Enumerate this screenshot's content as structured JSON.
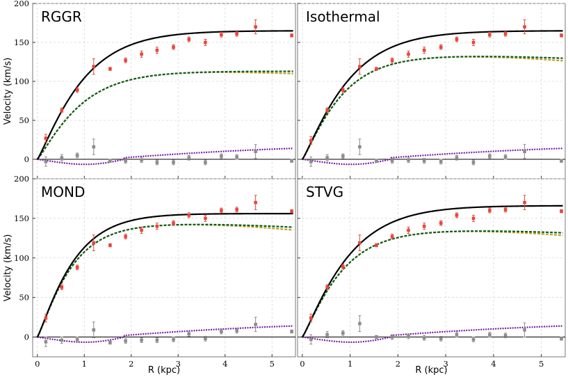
{
  "chart_data": [
    {
      "type": "line",
      "title": "RGGR",
      "xlabel": "",
      "ylabel": "Velocity (km/s)",
      "xlim": [
        -0.1,
        5.5
      ],
      "ylim": [
        -25,
        200
      ],
      "grid": true,
      "x_ticks": [
        "0",
        "1",
        "2",
        "3",
        "4",
        "5"
      ],
      "y_ticks": [
        "0",
        "50",
        "100",
        "150",
        "200"
      ],
      "observed": [
        {
          "x": 0.18,
          "y": 27,
          "err": 5
        },
        {
          "x": 0.52,
          "y": 63,
          "err": 3
        },
        {
          "x": 0.85,
          "y": 89,
          "err": 3
        },
        {
          "x": 1.2,
          "y": 119,
          "err": 10
        },
        {
          "x": 1.55,
          "y": 116,
          "err": 2
        },
        {
          "x": 1.88,
          "y": 127,
          "err": 3
        },
        {
          "x": 2.22,
          "y": 135,
          "err": 4
        },
        {
          "x": 2.55,
          "y": 140,
          "err": 4
        },
        {
          "x": 2.9,
          "y": 144,
          "err": 3
        },
        {
          "x": 3.23,
          "y": 154,
          "err": 3
        },
        {
          "x": 3.58,
          "y": 150,
          "err": 4
        },
        {
          "x": 3.92,
          "y": 160,
          "err": 3
        },
        {
          "x": 4.25,
          "y": 161,
          "err": 3
        },
        {
          "x": 4.65,
          "y": 170,
          "err": 9
        },
        {
          "x": 5.42,
          "y": 159,
          "err": 2
        }
      ],
      "residuals": [
        {
          "x": 0.18,
          "y": -3,
          "err": 6
        },
        {
          "x": 0.52,
          "y": 2,
          "err": 4
        },
        {
          "x": 0.85,
          "y": 5,
          "err": 3
        },
        {
          "x": 1.2,
          "y": 16,
          "err": 10
        },
        {
          "x": 1.55,
          "y": -2,
          "err": 2
        },
        {
          "x": 1.88,
          "y": -2,
          "err": 3
        },
        {
          "x": 2.22,
          "y": -1,
          "err": 3
        },
        {
          "x": 2.55,
          "y": -4,
          "err": 3
        },
        {
          "x": 2.9,
          "y": -4,
          "err": 3
        },
        {
          "x": 3.23,
          "y": 2,
          "err": 3
        },
        {
          "x": 3.58,
          "y": -4,
          "err": 3
        },
        {
          "x": 3.92,
          "y": 4,
          "err": 3
        },
        {
          "x": 4.25,
          "y": 3,
          "err": 3
        },
        {
          "x": 4.65,
          "y": 10,
          "err": 9
        },
        {
          "x": 5.42,
          "y": -2,
          "err": 2
        }
      ],
      "total_curve": {
        "vmax": 165,
        "rs": 1.0,
        "p": 1.6
      },
      "dark_curve": {
        "vmax": 113,
        "rs": 0.95,
        "p": 1.5,
        "drop": 0.0
      },
      "dark_curve2": {
        "vmax": 113,
        "rs": 0.95,
        "p": 1.5,
        "drop": 0.9
      },
      "baryon_curve": {
        "scale": 1.0
      }
    },
    {
      "type": "line",
      "title": "Isothermal",
      "xlabel": "",
      "ylabel": "",
      "xlim": [
        -0.1,
        5.5
      ],
      "ylim": [
        -25,
        200
      ],
      "grid": true,
      "x_ticks": [
        "0",
        "1",
        "2",
        "3",
        "4",
        "5"
      ],
      "y_ticks": [
        "0",
        "50",
        "100",
        "150",
        "200"
      ],
      "observed": [
        {
          "x": 0.18,
          "y": 24,
          "err": 5
        },
        {
          "x": 0.52,
          "y": 63,
          "err": 3
        },
        {
          "x": 0.85,
          "y": 89,
          "err": 3
        },
        {
          "x": 1.2,
          "y": 119,
          "err": 10
        },
        {
          "x": 1.55,
          "y": 116,
          "err": 2
        },
        {
          "x": 1.88,
          "y": 127,
          "err": 3
        },
        {
          "x": 2.22,
          "y": 135,
          "err": 4
        },
        {
          "x": 2.55,
          "y": 140,
          "err": 4
        },
        {
          "x": 2.9,
          "y": 144,
          "err": 3
        },
        {
          "x": 3.23,
          "y": 154,
          "err": 3
        },
        {
          "x": 3.58,
          "y": 150,
          "err": 4
        },
        {
          "x": 3.92,
          "y": 160,
          "err": 3
        },
        {
          "x": 4.25,
          "y": 161,
          "err": 3
        },
        {
          "x": 4.65,
          "y": 170,
          "err": 9
        },
        {
          "x": 5.42,
          "y": 159,
          "err": 2
        }
      ],
      "residuals": [
        {
          "x": 0.18,
          "y": -3,
          "err": 6
        },
        {
          "x": 0.52,
          "y": 2,
          "err": 4
        },
        {
          "x": 0.85,
          "y": 4,
          "err": 3
        },
        {
          "x": 1.2,
          "y": 16,
          "err": 10
        },
        {
          "x": 1.55,
          "y": -2,
          "err": 2
        },
        {
          "x": 1.88,
          "y": -2,
          "err": 3
        },
        {
          "x": 2.22,
          "y": -1,
          "err": 3
        },
        {
          "x": 2.55,
          "y": -2,
          "err": 3
        },
        {
          "x": 2.9,
          "y": -3,
          "err": 3
        },
        {
          "x": 3.23,
          "y": 2,
          "err": 3
        },
        {
          "x": 3.58,
          "y": -4,
          "err": 3
        },
        {
          "x": 3.92,
          "y": 4,
          "err": 3
        },
        {
          "x": 4.25,
          "y": 3,
          "err": 3
        },
        {
          "x": 4.65,
          "y": 10,
          "err": 9
        },
        {
          "x": 5.42,
          "y": -2,
          "err": 2
        }
      ],
      "total_curve": {
        "vmax": 165,
        "rs": 1.0,
        "p": 1.6
      },
      "dark_curve": {
        "vmax": 133,
        "rs": 0.85,
        "p": 1.6,
        "drop": 1.0
      },
      "dark_curve2": {
        "vmax": 133,
        "rs": 0.85,
        "p": 1.6,
        "drop": 2.0
      },
      "baryon_curve": {
        "scale": 1.0
      }
    },
    {
      "type": "line",
      "title": "MOND",
      "xlabel": "R (kpc)",
      "ylabel": "Velocity (km/s)",
      "xlim": [
        -0.1,
        5.5
      ],
      "ylim": [
        -25,
        200
      ],
      "grid": true,
      "x_ticks": [
        "0",
        "1",
        "2",
        "3",
        "4",
        "5"
      ],
      "y_ticks": [
        "0",
        "50",
        "100",
        "150",
        "200"
      ],
      "observed": [
        {
          "x": 0.18,
          "y": 24,
          "err": 5
        },
        {
          "x": 0.52,
          "y": 63,
          "err": 3
        },
        {
          "x": 0.85,
          "y": 88,
          "err": 3
        },
        {
          "x": 1.2,
          "y": 119,
          "err": 10
        },
        {
          "x": 1.55,
          "y": 116,
          "err": 2
        },
        {
          "x": 1.88,
          "y": 127,
          "err": 3
        },
        {
          "x": 2.22,
          "y": 135,
          "err": 4
        },
        {
          "x": 2.55,
          "y": 140,
          "err": 4
        },
        {
          "x": 2.9,
          "y": 144,
          "err": 3
        },
        {
          "x": 3.23,
          "y": 154,
          "err": 3
        },
        {
          "x": 3.58,
          "y": 150,
          "err": 4
        },
        {
          "x": 3.92,
          "y": 160,
          "err": 3
        },
        {
          "x": 4.25,
          "y": 161,
          "err": 3
        },
        {
          "x": 4.65,
          "y": 170,
          "err": 9
        },
        {
          "x": 5.42,
          "y": 159,
          "err": 2
        }
      ],
      "residuals": [
        {
          "x": 0.18,
          "y": -6,
          "err": 6
        },
        {
          "x": 0.52,
          "y": -4,
          "err": 4
        },
        {
          "x": 0.85,
          "y": -3,
          "err": 3
        },
        {
          "x": 1.2,
          "y": 9,
          "err": 10
        },
        {
          "x": 1.55,
          "y": -7,
          "err": 2
        },
        {
          "x": 1.88,
          "y": -5,
          "err": 3
        },
        {
          "x": 2.22,
          "y": -4,
          "err": 3
        },
        {
          "x": 2.55,
          "y": -4,
          "err": 3
        },
        {
          "x": 2.9,
          "y": -3,
          "err": 3
        },
        {
          "x": 3.23,
          "y": 4,
          "err": 3
        },
        {
          "x": 3.58,
          "y": -2,
          "err": 3
        },
        {
          "x": 3.92,
          "y": 7,
          "err": 3
        },
        {
          "x": 4.25,
          "y": 8,
          "err": 3
        },
        {
          "x": 4.65,
          "y": 16,
          "err": 9
        },
        {
          "x": 5.42,
          "y": 7,
          "err": 2
        }
      ],
      "total_curve": {
        "vmax": 156,
        "rs": 0.8,
        "p": 1.5
      },
      "dark_curve": {
        "vmax": 143,
        "rs": 0.75,
        "p": 1.5,
        "drop": 1.3
      },
      "dark_curve2": {
        "vmax": 143,
        "rs": 0.75,
        "p": 1.5,
        "drop": 2.4
      },
      "baryon_curve": {
        "scale": 1.0
      }
    },
    {
      "type": "line",
      "title": "STVG",
      "xlabel": "R (kpc)",
      "ylabel": "",
      "xlim": [
        -0.1,
        5.5
      ],
      "ylim": [
        -25,
        200
      ],
      "grid": true,
      "x_ticks": [
        "0",
        "1",
        "2",
        "3",
        "4",
        "5"
      ],
      "y_ticks": [
        "0",
        "50",
        "100",
        "150",
        "200"
      ],
      "observed": [
        {
          "x": 0.18,
          "y": 24,
          "err": 5
        },
        {
          "x": 0.52,
          "y": 63,
          "err": 3
        },
        {
          "x": 0.85,
          "y": 89,
          "err": 3
        },
        {
          "x": 1.2,
          "y": 119,
          "err": 10
        },
        {
          "x": 1.55,
          "y": 116,
          "err": 2
        },
        {
          "x": 1.88,
          "y": 127,
          "err": 3
        },
        {
          "x": 2.22,
          "y": 135,
          "err": 4
        },
        {
          "x": 2.55,
          "y": 140,
          "err": 4
        },
        {
          "x": 2.9,
          "y": 144,
          "err": 3
        },
        {
          "x": 3.23,
          "y": 154,
          "err": 3
        },
        {
          "x": 3.58,
          "y": 150,
          "err": 4
        },
        {
          "x": 3.92,
          "y": 160,
          "err": 3
        },
        {
          "x": 4.25,
          "y": 161,
          "err": 3
        },
        {
          "x": 4.65,
          "y": 170,
          "err": 9
        },
        {
          "x": 5.42,
          "y": 159,
          "err": 2
        }
      ],
      "residuals": [
        {
          "x": 0.18,
          "y": -3,
          "err": 6
        },
        {
          "x": 0.52,
          "y": 3,
          "err": 4
        },
        {
          "x": 0.85,
          "y": 5,
          "err": 3
        },
        {
          "x": 1.2,
          "y": 17,
          "err": 10
        },
        {
          "x": 1.55,
          "y": 0,
          "err": 2
        },
        {
          "x": 1.88,
          "y": 0,
          "err": 3
        },
        {
          "x": 2.22,
          "y": 1,
          "err": 3
        },
        {
          "x": 2.55,
          "y": -1,
          "err": 3
        },
        {
          "x": 2.9,
          "y": -2,
          "err": 3
        },
        {
          "x": 3.23,
          "y": 3,
          "err": 3
        },
        {
          "x": 3.58,
          "y": -3,
          "err": 3
        },
        {
          "x": 3.92,
          "y": 3,
          "err": 3
        },
        {
          "x": 4.25,
          "y": 2,
          "err": 3
        },
        {
          "x": 4.65,
          "y": 9,
          "err": 9
        },
        {
          "x": 5.42,
          "y": -2,
          "err": 2
        }
      ],
      "total_curve": {
        "vmax": 166,
        "rs": 1.0,
        "p": 1.6
      },
      "dark_curve": {
        "vmax": 135,
        "rs": 0.85,
        "p": 1.6,
        "drop": 1.0
      },
      "dark_curve2": {
        "vmax": 135,
        "rs": 0.85,
        "p": 1.6,
        "drop": 2.0
      },
      "baryon_curve": {
        "scale": 1.0
      }
    }
  ],
  "colors": {
    "observed": "#e8463c",
    "residual": "#8c8c8c",
    "total": "#000000",
    "dark": "#0f5c1c",
    "dark_alt": "#b8a21e",
    "baryon": "#7b1fa2",
    "grid": "#d6d6d6",
    "zero_line": "#000000"
  }
}
